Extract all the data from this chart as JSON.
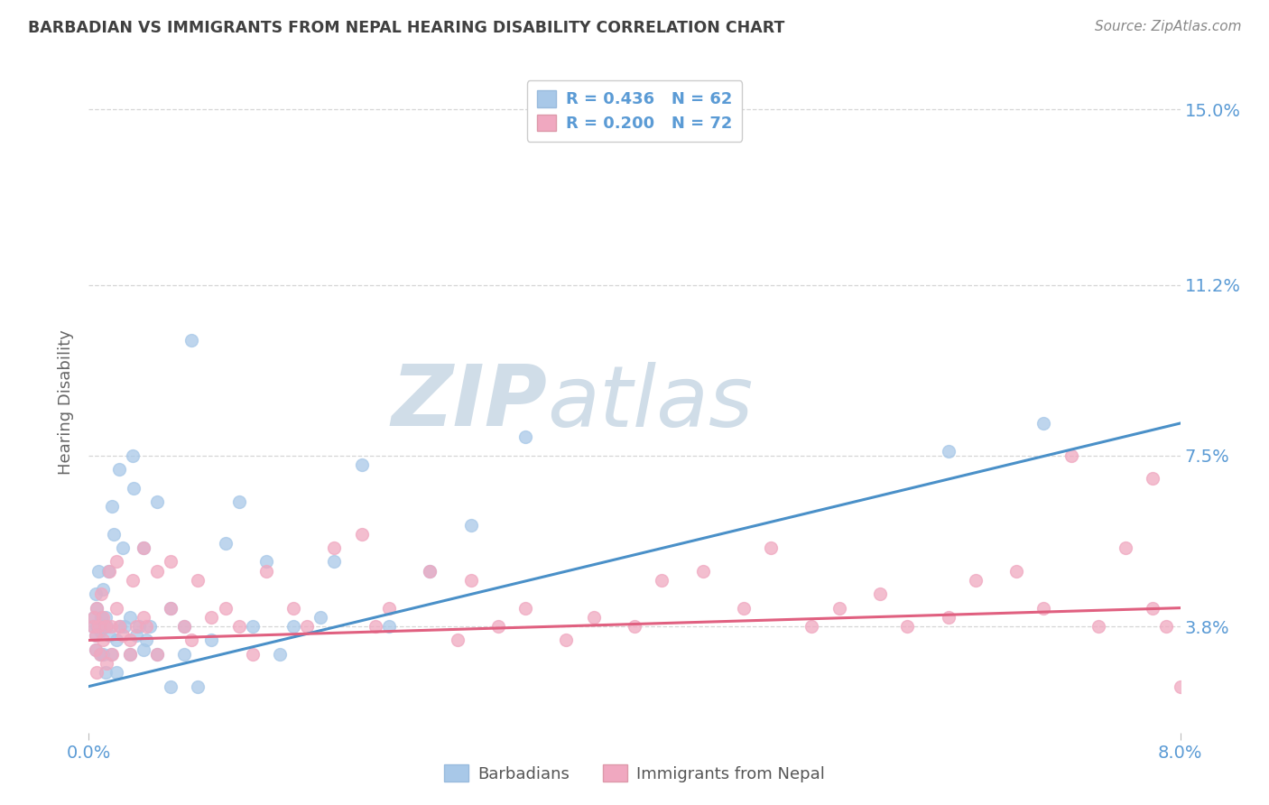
{
  "title": "BARBADIAN VS IMMIGRANTS FROM NEPAL HEARING DISABILITY CORRELATION CHART",
  "source": "Source: ZipAtlas.com",
  "ylabel": "Hearing Disability",
  "x_min": 0.0,
  "x_max": 0.08,
  "y_min": 0.015,
  "y_max": 0.158,
  "yticks": [
    0.038,
    0.075,
    0.112,
    0.15
  ],
  "ytick_labels": [
    "3.8%",
    "7.5%",
    "11.2%",
    "15.0%"
  ],
  "series1_color": "#A8C8E8",
  "series2_color": "#F0A8C0",
  "line1_color": "#4A90C8",
  "line2_color": "#E06080",
  "series1_label": "Barbadians",
  "series2_label": "Immigrants from Nepal",
  "R1": 0.436,
  "N1": 62,
  "R2": 0.2,
  "N2": 72,
  "background_color": "#FFFFFF",
  "grid_color": "#CCCCCC",
  "title_color": "#404040",
  "axis_label_color": "#5B9BD5",
  "watermark_color": "#D0DDE8",
  "barbadians_x": [
    0.0003,
    0.0004,
    0.0005,
    0.0005,
    0.0005,
    0.0006,
    0.0006,
    0.0007,
    0.0008,
    0.0008,
    0.0009,
    0.001,
    0.001,
    0.001,
    0.0012,
    0.0012,
    0.0013,
    0.0014,
    0.0015,
    0.0016,
    0.0017,
    0.0018,
    0.002,
    0.002,
    0.0022,
    0.0023,
    0.0025,
    0.0026,
    0.003,
    0.003,
    0.0032,
    0.0033,
    0.0035,
    0.0037,
    0.004,
    0.004,
    0.0042,
    0.0045,
    0.005,
    0.005,
    0.006,
    0.006,
    0.007,
    0.007,
    0.0075,
    0.008,
    0.009,
    0.01,
    0.011,
    0.012,
    0.013,
    0.014,
    0.015,
    0.017,
    0.018,
    0.02,
    0.022,
    0.025,
    0.028,
    0.032,
    0.063,
    0.07
  ],
  "barbadians_y": [
    0.038,
    0.04,
    0.036,
    0.033,
    0.045,
    0.038,
    0.042,
    0.05,
    0.037,
    0.032,
    0.04,
    0.038,
    0.046,
    0.032,
    0.04,
    0.028,
    0.038,
    0.05,
    0.036,
    0.032,
    0.064,
    0.058,
    0.035,
    0.028,
    0.072,
    0.038,
    0.055,
    0.038,
    0.04,
    0.032,
    0.075,
    0.068,
    0.036,
    0.038,
    0.055,
    0.033,
    0.035,
    0.038,
    0.065,
    0.032,
    0.042,
    0.025,
    0.038,
    0.032,
    0.1,
    0.025,
    0.035,
    0.056,
    0.065,
    0.038,
    0.052,
    0.032,
    0.038,
    0.04,
    0.052,
    0.073,
    0.038,
    0.05,
    0.06,
    0.079,
    0.076,
    0.082
  ],
  "nepal_x": [
    0.0003,
    0.0004,
    0.0005,
    0.0005,
    0.0006,
    0.0006,
    0.0007,
    0.0008,
    0.0009,
    0.001,
    0.001,
    0.0012,
    0.0013,
    0.0015,
    0.0016,
    0.0017,
    0.002,
    0.002,
    0.0022,
    0.0025,
    0.003,
    0.003,
    0.0032,
    0.0035,
    0.004,
    0.004,
    0.0042,
    0.005,
    0.005,
    0.006,
    0.006,
    0.007,
    0.0075,
    0.008,
    0.009,
    0.01,
    0.011,
    0.012,
    0.013,
    0.015,
    0.016,
    0.018,
    0.02,
    0.021,
    0.022,
    0.025,
    0.027,
    0.028,
    0.03,
    0.032,
    0.035,
    0.037,
    0.04,
    0.042,
    0.045,
    0.048,
    0.05,
    0.053,
    0.055,
    0.058,
    0.06,
    0.063,
    0.065,
    0.068,
    0.07,
    0.072,
    0.074,
    0.076,
    0.078,
    0.079,
    0.08,
    0.078
  ],
  "nepal_y": [
    0.038,
    0.04,
    0.036,
    0.033,
    0.042,
    0.028,
    0.038,
    0.032,
    0.045,
    0.04,
    0.035,
    0.038,
    0.03,
    0.05,
    0.038,
    0.032,
    0.052,
    0.042,
    0.038,
    0.036,
    0.035,
    0.032,
    0.048,
    0.038,
    0.055,
    0.04,
    0.038,
    0.05,
    0.032,
    0.052,
    0.042,
    0.038,
    0.035,
    0.048,
    0.04,
    0.042,
    0.038,
    0.032,
    0.05,
    0.042,
    0.038,
    0.055,
    0.058,
    0.038,
    0.042,
    0.05,
    0.035,
    0.048,
    0.038,
    0.042,
    0.035,
    0.04,
    0.038,
    0.048,
    0.05,
    0.042,
    0.055,
    0.038,
    0.042,
    0.045,
    0.038,
    0.04,
    0.048,
    0.05,
    0.042,
    0.075,
    0.038,
    0.055,
    0.042,
    0.038,
    0.025,
    0.07
  ]
}
